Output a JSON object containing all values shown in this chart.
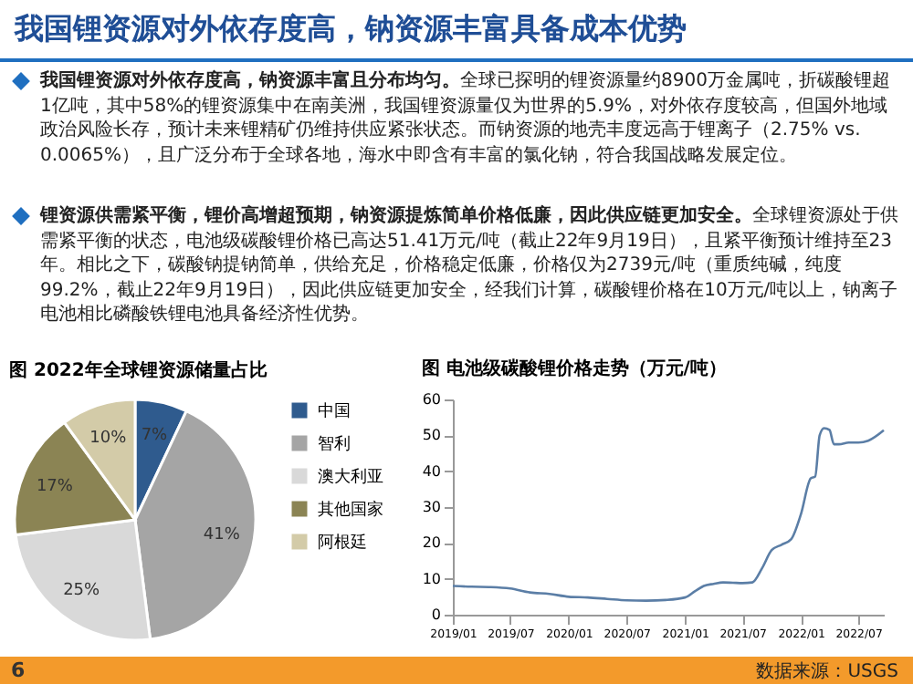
{
  "chart_data": [
    {
      "type": "other",
      "title": "我国锂资源对外依存度高，钠资源丰富具备成本优势",
      "annotations": [
        "我国锂资源对外依存度高，钠资源丰富且分布均匀。",
        "全球已探明的锂资源量约8900万金属吨，折碳酸锂超1亿吨，其中58%的锂资源集中在南美洲，我国锂资源量仅为世界的5.9%，对外依存度较高，但国外地域政治风险长存，预计未来锂精矿仍维持供应紧张状态。而钠资源的地壳丰度远高于锂离子（2.75% vs. 0.0065%），且广泛分布于全球各地，海水中即含有丰富的氯化钠，符合我国战略发展定位。",
        "锂资源供需紧平衡，锂价高增超预期，钠资源提炼简单价格低廉，因此供应链更加安全。",
        "全球锂资源处于供需紧平衡的状态，电池级碳酸锂价格已高达51.41万元/吨（截止22年9月19日），且紧平衡预计维持至23年。相比之下，碳酸钠提钠简单，供给充足，价格稳定低廉，价格仅为2739元/吨（重质纯碱，纯度99.2%，截止22年9月19日），因此供应链更加安全，经我们计算，碳酸锂价格在10万元/吨以上，钠离子电池相比磷酸铁锂电池具备经济性优势。",
        "数据来源：USGS",
        "6"
      ]
    },
    {
      "type": "pie",
      "title": "图 2022年全球锂资源储量占比",
      "categories": [
        "中国",
        "智利",
        "澳大利亚",
        "其他国家",
        "阿根廷"
      ],
      "values": [
        7,
        41,
        25,
        17,
        10
      ],
      "colors": [
        "#2f5b8e",
        "#a5a5a5",
        "#d9d9d9",
        "#8b8454",
        "#d3cba8"
      ],
      "value_labels": [
        "7%",
        "41%",
        "25%",
        "17%",
        "10%"
      ],
      "legend": "right"
    },
    {
      "type": "line",
      "title": "图 电池级碳酸锂价格走势（万元/吨）",
      "x": [
        "2019-01-01",
        "2019-03-01",
        "2019-05-01",
        "2019-07-01",
        "2019-09-01",
        "2019-11-01",
        "2020-01-01",
        "2020-03-01",
        "2020-05-01",
        "2020-07-01",
        "2020-09-01",
        "2020-11-01",
        "2021-01-01",
        "2021-02-01",
        "2021-03-01",
        "2021-04-01",
        "2021-05-01",
        "2021-06-01",
        "2021-07-01",
        "2021-08-01",
        "2021-09-01",
        "2021-10-01",
        "2021-11-01",
        "2021-12-01",
        "2022-01-01",
        "2022-02-01",
        "2022-02-15",
        "2022-03-01",
        "2022-03-15",
        "2022-04-01",
        "2022-04-15",
        "2022-05-01",
        "2022-06-01",
        "2022-07-01",
        "2022-08-01",
        "2022-09-19"
      ],
      "series": [
        {
          "color": "#5b7ea6",
          "values": [
            8,
            7.8,
            7.7,
            7.3,
            6.2,
            5.8,
            5.0,
            4.8,
            4.4,
            4.0,
            3.9,
            4.1,
            4.8,
            6.5,
            8.0,
            8.6,
            9.0,
            8.9,
            8.8,
            9.0,
            13,
            18,
            19.5,
            21,
            28,
            38,
            38.5,
            50,
            52,
            51.5,
            47.5,
            47.5,
            48,
            48,
            48.5,
            51.4
          ]
        }
      ],
      "xlim": [
        "2019-01-01",
        "2022-09-19"
      ],
      "xticks": [
        {
          "value": "2019-01-01",
          "label": "2019/01"
        },
        {
          "value": "2019-07-01",
          "label": "2019/07"
        },
        {
          "value": "2020-01-01",
          "label": "2020/01"
        },
        {
          "value": "2020-07-01",
          "label": "2020/07"
        },
        {
          "value": "2021-01-01",
          "label": "2021/01"
        },
        {
          "value": "2021-07-01",
          "label": "2021/07"
        },
        {
          "value": "2022-01-01",
          "label": "2022/01"
        },
        {
          "value": "2022-07-01",
          "label": "2022/07"
        }
      ],
      "ylim": [
        0,
        60
      ],
      "yticks": [
        0,
        10,
        20,
        30,
        40,
        50,
        60
      ],
      "grid": false
    }
  ]
}
